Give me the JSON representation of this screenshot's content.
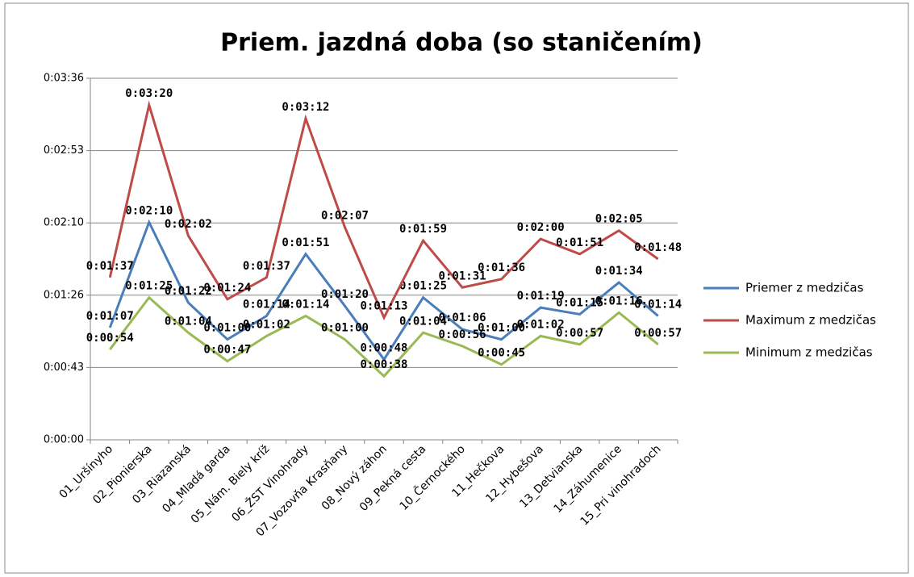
{
  "chart_data": {
    "type": "line",
    "title": "Priem. jazdná doba (so staničením)",
    "categories": [
      "01_Uršínyho",
      "02_Pionierska",
      "03_Riazanská",
      "04_Mladá garda",
      "05_Nám. Biely kríž",
      "06_ŽST Vinohrady",
      "07_Vozovňa Krasňany",
      "08_Nový záhon",
      "09_Pekná cesta",
      "10_Černockého",
      "11_Hečkova",
      "12_Hybešova",
      "13_Detvianska",
      "14_Záhumenice",
      "15_Pri vinohradoch"
    ],
    "series": [
      {
        "name": "Priemer z medzičas",
        "color": "#4a7ebb",
        "values": [
          67,
          130,
          82,
          60,
          74,
          111,
          80,
          48,
          85,
          66,
          60,
          79,
          75,
          94,
          74
        ],
        "value_labels": [
          "0:01:07",
          "0:02:10",
          "0:01:22",
          "0:01:00",
          "0:01:14",
          "0:01:51",
          "0:01:20",
          "0:00:48",
          "0:01:25",
          "0:01:06",
          "0:01:00",
          "0:01:19",
          "0:01:15",
          "0:01:34",
          "0:01:14"
        ]
      },
      {
        "name": "Maximum z medzičas",
        "color": "#be4b48",
        "values": [
          97,
          200,
          122,
          84,
          97,
          192,
          127,
          73,
          119,
          91,
          96,
          120,
          111,
          125,
          108
        ],
        "value_labels": [
          "0:01:37",
          "0:03:20",
          "0:02:02",
          "0:01:24",
          "0:01:37",
          "0:03:12",
          "0:02:07",
          "0:01:13",
          "0:01:59",
          "0:01:31",
          "0:01:36",
          "0:02:00",
          "0:01:51",
          "0:02:05",
          "0:01:48"
        ]
      },
      {
        "name": "Minimum z medzičas",
        "color": "#98b954",
        "values": [
          54,
          85,
          64,
          47,
          62,
          74,
          60,
          38,
          64,
          56,
          45,
          62,
          57,
          76,
          57
        ],
        "value_labels": [
          "0:00:54",
          "0:01:25",
          "0:01:04",
          "0:00:47",
          "0:01:02",
          "0:01:14",
          "0:01:00",
          "0:00:38",
          "0:01:04",
          "0:00:56",
          "0:00:45",
          "0:01:02",
          "0:00:57",
          "0:01:16",
          "0:00:57"
        ]
      }
    ],
    "ylim": [
      0,
      216
    ],
    "yticks": [
      {
        "value": 0,
        "label": "0:00:00"
      },
      {
        "value": 43.2,
        "label": "0:00:43"
      },
      {
        "value": 86.4,
        "label": "0:01:26"
      },
      {
        "value": 129.6,
        "label": "0:02:10"
      },
      {
        "value": 172.8,
        "label": "0:02:53"
      },
      {
        "value": 216,
        "label": "0:03:36"
      }
    ],
    "grid": true,
    "legend": "right"
  }
}
